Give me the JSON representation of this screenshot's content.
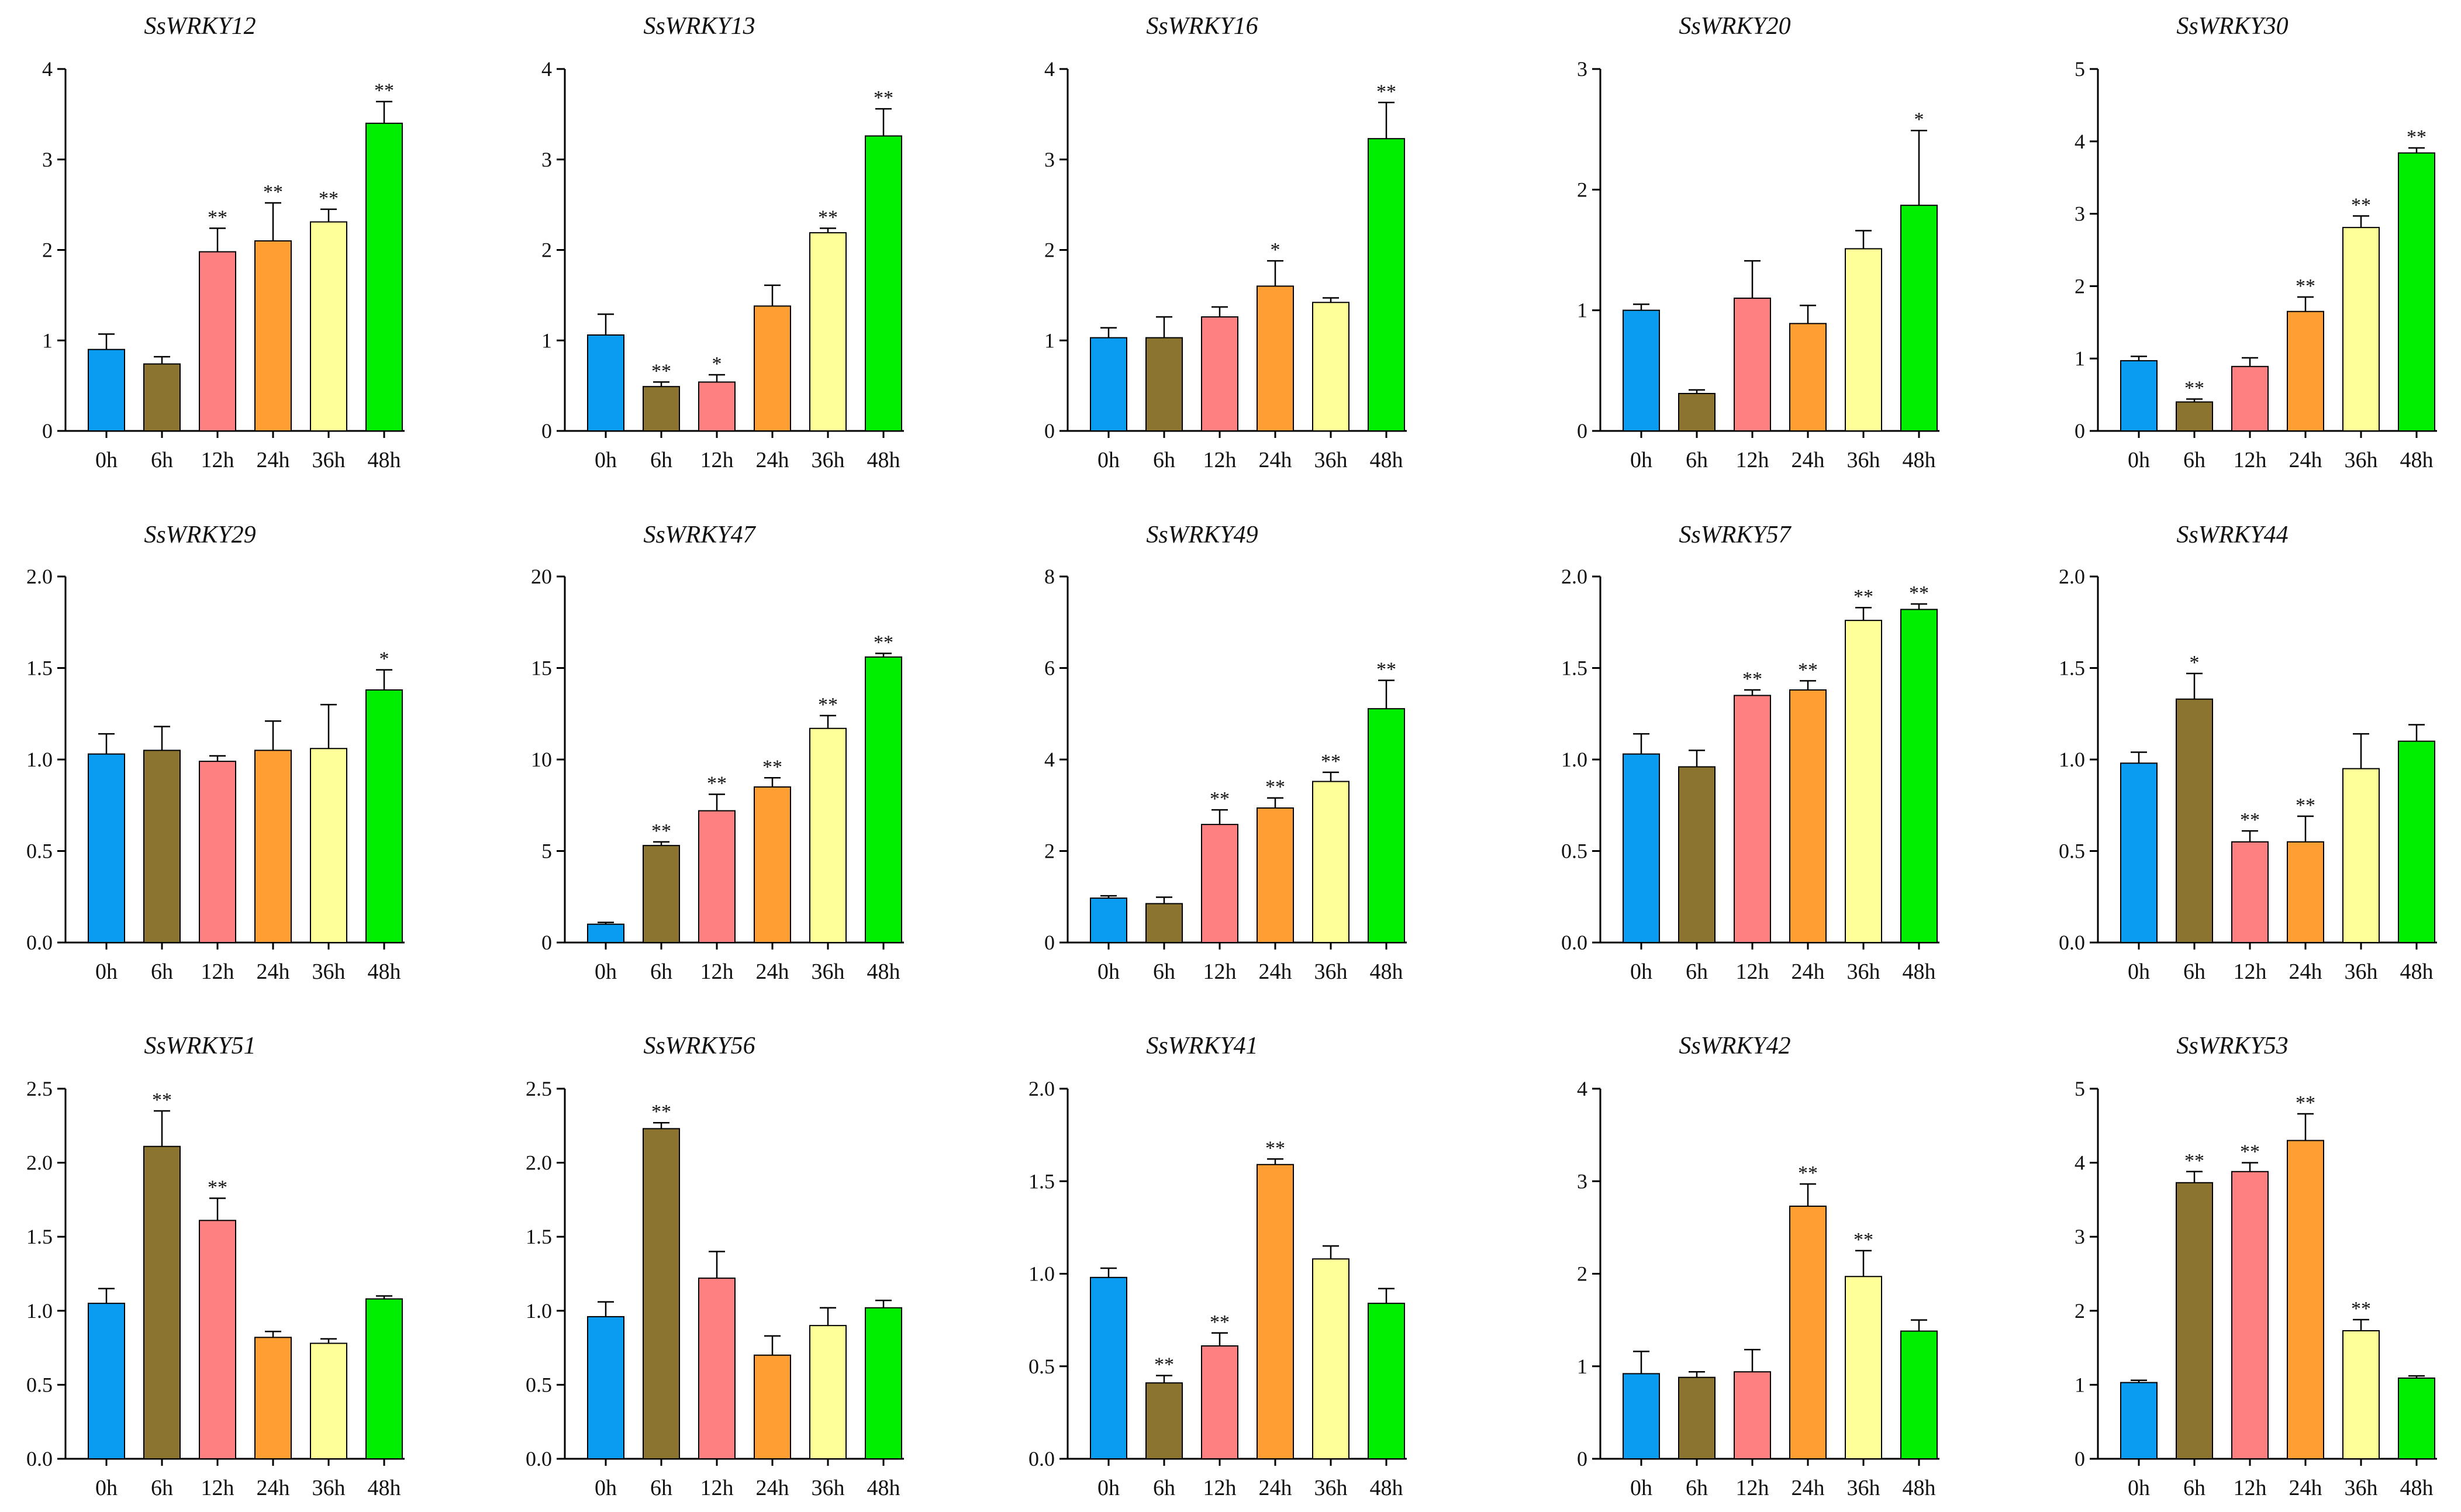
{
  "colors": [
    "#0a9cf0",
    "#8b7430",
    "#ff8080",
    "#ff9e33",
    "#ffff99",
    "#00ee00"
  ],
  "chart_data": [
    {
      "type": "bar",
      "title": "SsWRKY12",
      "categories": [
        "0h",
        "6h",
        "12h",
        "24h",
        "36h",
        "48h"
      ],
      "values": [
        0.9,
        0.74,
        1.98,
        2.1,
        2.31,
        3.4
      ],
      "errors": [
        0.17,
        0.08,
        0.26,
        0.42,
        0.14,
        0.24
      ],
      "sig": [
        "",
        "",
        "**",
        "**",
        "**",
        "**"
      ],
      "ylim": [
        0,
        4
      ],
      "yticks": [
        "0",
        "1",
        "2",
        "3",
        "4"
      ]
    },
    {
      "type": "bar",
      "title": "SsWRKY13",
      "categories": [
        "0h",
        "6h",
        "12h",
        "24h",
        "36h",
        "48h"
      ],
      "values": [
        1.06,
        0.49,
        0.54,
        1.38,
        2.19,
        3.26
      ],
      "errors": [
        0.23,
        0.05,
        0.08,
        0.23,
        0.05,
        0.3
      ],
      "sig": [
        "",
        "**",
        "*",
        "",
        "**",
        "**"
      ],
      "ylim": [
        0,
        4
      ],
      "yticks": [
        "0",
        "1",
        "2",
        "3",
        "4"
      ]
    },
    {
      "type": "bar",
      "title": "SsWRKY16",
      "categories": [
        "0h",
        "6h",
        "12h",
        "24h",
        "36h",
        "48h"
      ],
      "values": [
        1.03,
        1.03,
        1.26,
        1.6,
        1.42,
        3.23
      ],
      "errors": [
        0.11,
        0.23,
        0.11,
        0.28,
        0.05,
        0.4
      ],
      "sig": [
        "",
        "",
        "",
        "*",
        "",
        "**"
      ],
      "ylim": [
        0,
        4
      ],
      "yticks": [
        "0",
        "1",
        "2",
        "3",
        "4"
      ]
    },
    {
      "type": "bar",
      "title": "SsWRKY20",
      "categories": [
        "0h",
        "6h",
        "12h",
        "24h",
        "36h",
        "48h"
      ],
      "values": [
        1.0,
        0.31,
        1.1,
        0.89,
        1.51,
        1.87
      ],
      "errors": [
        0.05,
        0.03,
        0.31,
        0.15,
        0.15,
        0.62
      ],
      "sig": [
        "",
        "",
        "",
        "",
        "",
        "*"
      ],
      "ylim": [
        0,
        3
      ],
      "yticks": [
        "0",
        "1",
        "2",
        "3"
      ]
    },
    {
      "type": "bar",
      "title": "SsWRKY30",
      "categories": [
        "0h",
        "6h",
        "12h",
        "24h",
        "36h",
        "48h"
      ],
      "values": [
        0.97,
        0.4,
        0.89,
        1.65,
        2.81,
        3.84
      ],
      "errors": [
        0.06,
        0.04,
        0.12,
        0.2,
        0.16,
        0.07
      ],
      "sig": [
        "",
        "**",
        "",
        "**",
        "**",
        "**"
      ],
      "ylim": [
        0,
        5
      ],
      "yticks": [
        "0",
        "1",
        "2",
        "3",
        "4",
        "5"
      ]
    },
    {
      "type": "bar",
      "title": "SsWRKY29",
      "categories": [
        "0h",
        "6h",
        "12h",
        "24h",
        "36h",
        "48h"
      ],
      "values": [
        1.03,
        1.05,
        0.99,
        1.05,
        1.06,
        1.38
      ],
      "errors": [
        0.11,
        0.13,
        0.03,
        0.16,
        0.24,
        0.11
      ],
      "sig": [
        "",
        "",
        "",
        "",
        "",
        "*"
      ],
      "ylim": [
        0,
        2
      ],
      "yticks": [
        "0.0",
        "0.5",
        "1.0",
        "1.5",
        "2.0"
      ]
    },
    {
      "type": "bar",
      "title": "SsWRKY47",
      "categories": [
        "0h",
        "6h",
        "12h",
        "24h",
        "36h",
        "48h"
      ],
      "values": [
        1.0,
        5.3,
        7.2,
        8.5,
        11.7,
        15.6
      ],
      "errors": [
        0.1,
        0.2,
        0.9,
        0.5,
        0.7,
        0.2
      ],
      "sig": [
        "",
        "**",
        "**",
        "**",
        "**",
        "**"
      ],
      "ylim": [
        0,
        20
      ],
      "yticks": [
        "0",
        "5",
        "10",
        "15",
        "20"
      ]
    },
    {
      "type": "bar",
      "title": "SsWRKY49",
      "categories": [
        "0h",
        "6h",
        "12h",
        "24h",
        "36h",
        "48h"
      ],
      "values": [
        0.97,
        0.85,
        2.58,
        2.94,
        3.52,
        5.11
      ],
      "errors": [
        0.05,
        0.14,
        0.32,
        0.22,
        0.2,
        0.62
      ],
      "sig": [
        "",
        "",
        "**",
        "**",
        "**",
        "**"
      ],
      "ylim": [
        0,
        8
      ],
      "yticks": [
        "0",
        "2",
        "4",
        "6",
        "8"
      ]
    },
    {
      "type": "bar",
      "title": "SsWRKY57",
      "categories": [
        "0h",
        "6h",
        "12h",
        "24h",
        "36h",
        "48h"
      ],
      "values": [
        1.03,
        0.96,
        1.35,
        1.38,
        1.76,
        1.82
      ],
      "errors": [
        0.11,
        0.09,
        0.03,
        0.05,
        0.07,
        0.03
      ],
      "sig": [
        "",
        "",
        "**",
        "**",
        "**",
        "**"
      ],
      "ylim": [
        0,
        2
      ],
      "yticks": [
        "0.0",
        "0.5",
        "1.0",
        "1.5",
        "2.0"
      ]
    },
    {
      "type": "bar",
      "title": "SsWRKY44",
      "categories": [
        "0h",
        "6h",
        "12h",
        "24h",
        "36h",
        "48h"
      ],
      "values": [
        0.98,
        1.33,
        0.55,
        0.55,
        0.95,
        1.1
      ],
      "errors": [
        0.06,
        0.14,
        0.06,
        0.14,
        0.19,
        0.09
      ],
      "sig": [
        "",
        "*",
        "**",
        "**",
        "",
        ""
      ],
      "ylim": [
        0,
        2
      ],
      "yticks": [
        "0.0",
        "0.5",
        "1.0",
        "1.5",
        "2.0"
      ]
    },
    {
      "type": "bar",
      "title": "SsWRKY51",
      "categories": [
        "0h",
        "6h",
        "12h",
        "24h",
        "36h",
        "48h"
      ],
      "values": [
        1.05,
        2.11,
        1.61,
        0.82,
        0.78,
        1.08
      ],
      "errors": [
        0.1,
        0.24,
        0.15,
        0.04,
        0.03,
        0.02
      ],
      "sig": [
        "",
        "**",
        "**",
        "",
        "",
        ""
      ],
      "ylim": [
        0,
        2.5
      ],
      "yticks": [
        "0.0",
        "0.5",
        "1.0",
        "1.5",
        "2.0",
        "2.5"
      ]
    },
    {
      "type": "bar",
      "title": "SsWRKY56",
      "categories": [
        "0h",
        "6h",
        "12h",
        "24h",
        "36h",
        "48h"
      ],
      "values": [
        0.96,
        2.23,
        1.22,
        0.7,
        0.9,
        1.02
      ],
      "errors": [
        0.1,
        0.04,
        0.18,
        0.13,
        0.12,
        0.05
      ],
      "sig": [
        "",
        "**",
        "",
        "",
        "",
        ""
      ],
      "ylim": [
        0,
        2.5
      ],
      "yticks": [
        "0.0",
        "0.5",
        "1.0",
        "1.5",
        "2.0",
        "2.5"
      ]
    },
    {
      "type": "bar",
      "title": "SsWRKY41",
      "categories": [
        "0h",
        "6h",
        "12h",
        "24h",
        "36h",
        "48h"
      ],
      "values": [
        0.98,
        0.41,
        0.61,
        1.59,
        1.08,
        0.84
      ],
      "errors": [
        0.05,
        0.04,
        0.07,
        0.03,
        0.07,
        0.08
      ],
      "sig": [
        "",
        "**",
        "**",
        "**",
        "",
        ""
      ],
      "ylim": [
        0,
        2
      ],
      "yticks": [
        "0.0",
        "0.5",
        "1.0",
        "1.5",
        "2.0"
      ]
    },
    {
      "type": "bar",
      "title": "SsWRKY42",
      "categories": [
        "0h",
        "6h",
        "12h",
        "24h",
        "36h",
        "48h"
      ],
      "values": [
        0.92,
        0.88,
        0.94,
        2.73,
        1.97,
        1.38
      ],
      "errors": [
        0.24,
        0.06,
        0.24,
        0.24,
        0.28,
        0.12
      ],
      "sig": [
        "",
        "",
        "",
        "**",
        "**",
        ""
      ],
      "ylim": [
        0,
        4
      ],
      "yticks": [
        "0",
        "1",
        "2",
        "3",
        "4"
      ]
    },
    {
      "type": "bar",
      "title": "SsWRKY53",
      "categories": [
        "0h",
        "6h",
        "12h",
        "24h",
        "36h",
        "48h"
      ],
      "values": [
        1.03,
        3.73,
        3.88,
        4.3,
        1.73,
        1.09
      ],
      "errors": [
        0.03,
        0.15,
        0.12,
        0.36,
        0.15,
        0.03
      ],
      "sig": [
        "",
        "**",
        "**",
        "**",
        "**",
        ""
      ],
      "ylim": [
        0,
        5
      ],
      "yticks": [
        "0",
        "1",
        "2",
        "3",
        "4",
        "5"
      ]
    }
  ]
}
